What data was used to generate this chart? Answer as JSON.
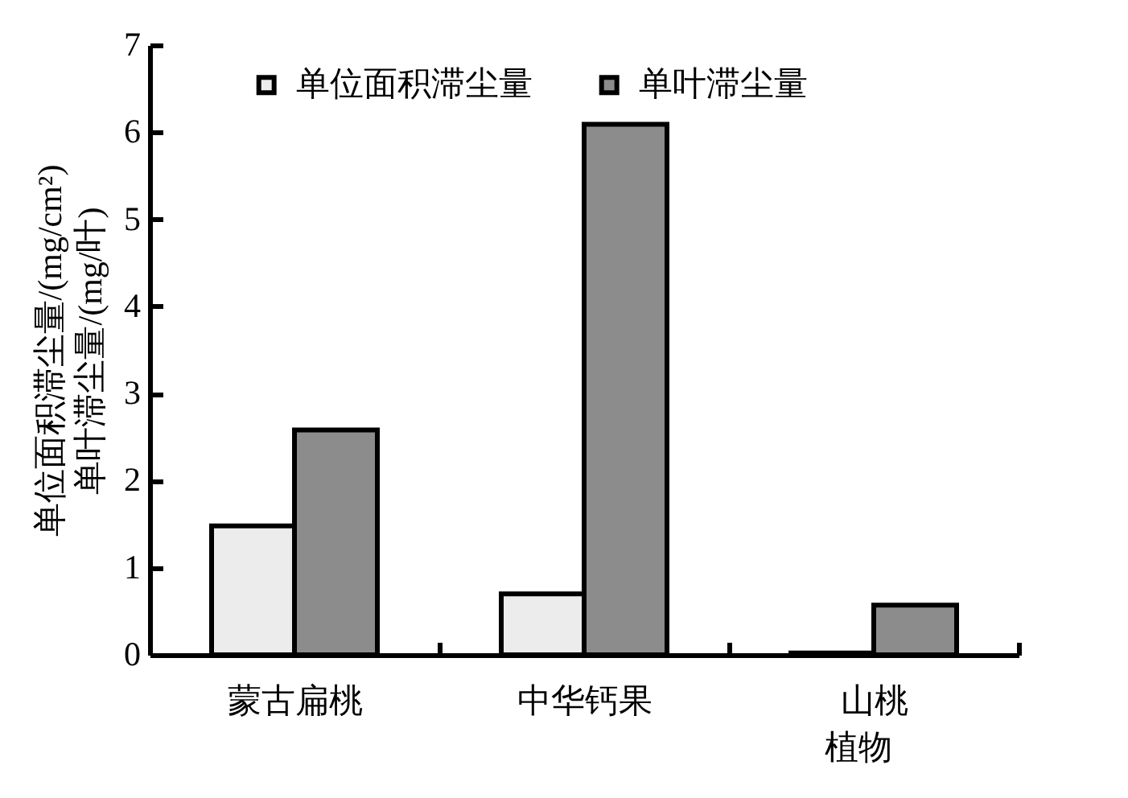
{
  "chart_data": {
    "type": "bar",
    "categories": [
      "蒙古扁桃",
      "中华钙果",
      "山桃"
    ],
    "series": [
      {
        "name": "单位面积滞尘量",
        "color": "#ececec",
        "values": [
          1.48,
          0.7,
          0.02
        ]
      },
      {
        "name": "单叶滞尘量",
        "color": "#8c8c8c",
        "values": [
          2.58,
          6.09,
          0.57
        ]
      }
    ],
    "xlabel": "植物",
    "ylabel": "单位面积滞尘量/(mg/cm²)\n单叶滞尘量/(mg/叶)",
    "ylim": [
      0,
      7
    ],
    "yticks": [
      0,
      1,
      2,
      3,
      4,
      5,
      6,
      7
    ],
    "grid": false,
    "legend": "top"
  }
}
